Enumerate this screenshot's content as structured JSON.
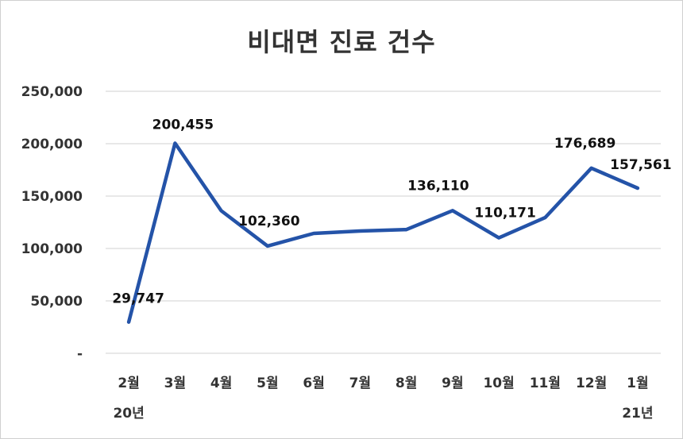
{
  "title": "비대면 진료 건수",
  "colors": {
    "line": "#2453A8",
    "grid": "#D9D9D9",
    "text": "#333333"
  },
  "chart_data": {
    "type": "line",
    "title": "비대면 진료 건수",
    "xlabel": "",
    "ylabel": "",
    "ylim": [
      0,
      250000
    ],
    "yticks": [
      0,
      50000,
      100000,
      150000,
      200000,
      250000
    ],
    "ytick_labels": [
      "-",
      "50,000",
      "100,000",
      "150,000",
      "200,000",
      "250,000"
    ],
    "grid": true,
    "legend": null,
    "categories": [
      "2월",
      "3월",
      "4월",
      "5월",
      "6월",
      "7월",
      "8월",
      "9월",
      "10월",
      "11월",
      "12월",
      "1월"
    ],
    "year_labels": [
      {
        "index": 0,
        "label": "20년"
      },
      {
        "index": 11,
        "label": "21년"
      }
    ],
    "series": [
      {
        "name": "비대면 진료 건수",
        "values": [
          29747,
          200455,
          136000,
          102360,
          114400,
          116700,
          118000,
          136110,
          110171,
          129500,
          176689,
          157561
        ]
      }
    ],
    "data_labels": [
      {
        "index": 0,
        "text": "29,747"
      },
      {
        "index": 1,
        "text": "200,455"
      },
      {
        "index": 3,
        "text": "102,360"
      },
      {
        "index": 7,
        "text": "136,110"
      },
      {
        "index": 8,
        "text": "110,171"
      },
      {
        "index": 10,
        "text": "176,689"
      },
      {
        "index": 11,
        "text": "157,561"
      }
    ]
  }
}
